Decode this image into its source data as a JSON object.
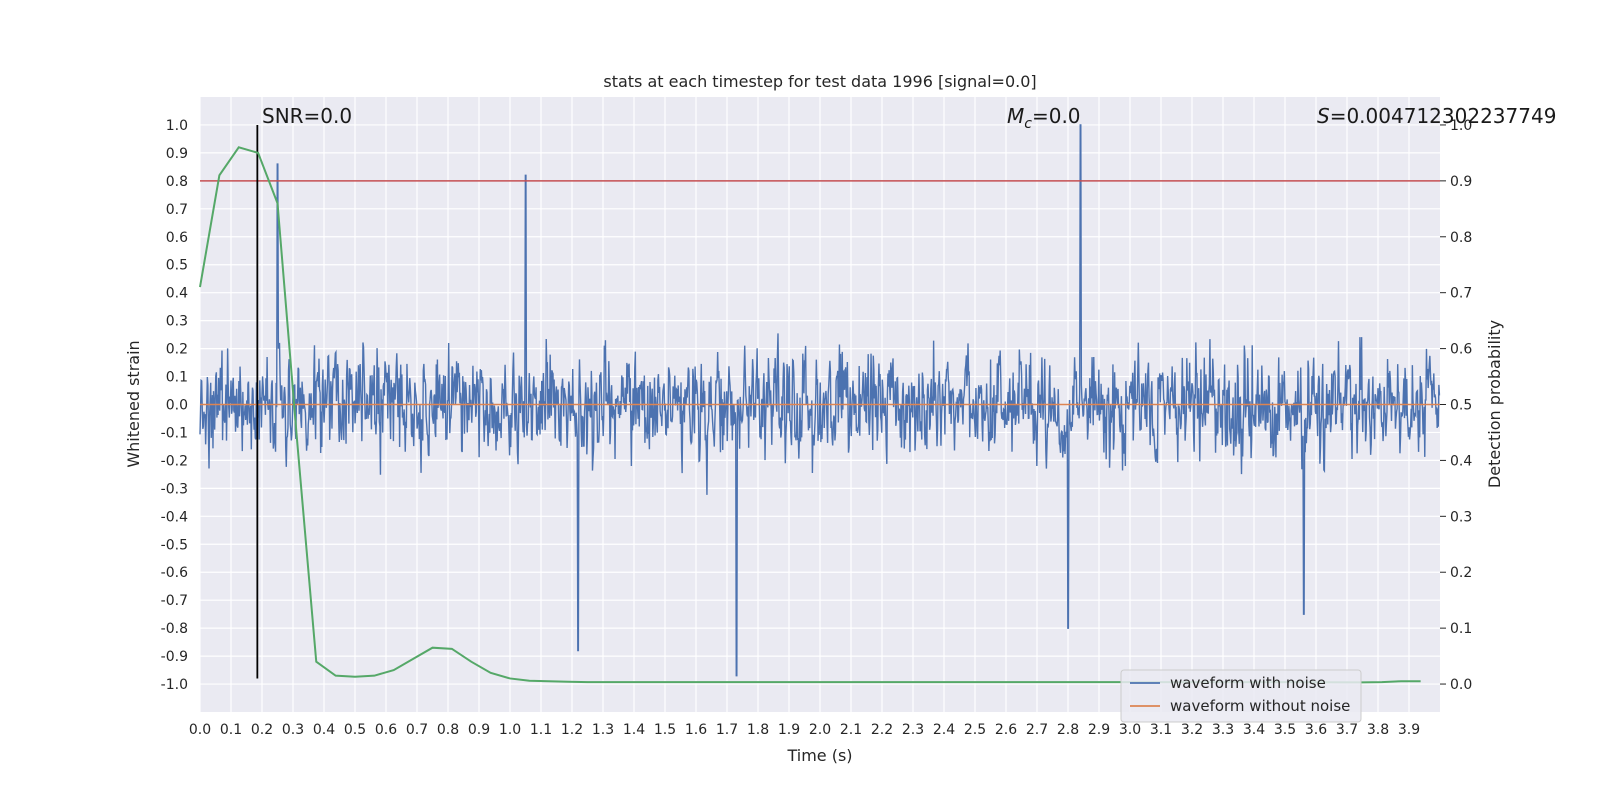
{
  "chart_data": {
    "type": "line",
    "title": "stats at each timestep for test data 1996 [signal=0.0]",
    "xlabel": "Time (s)",
    "ylabel": "Whitened strain",
    "ylabel_right": "Detection probability",
    "xlim": [
      0.0,
      4.0
    ],
    "ylim": [
      -1.1,
      1.1
    ],
    "ylim_right": [
      -0.05,
      1.05
    ],
    "x_ticks": [
      "0.0",
      "0.1",
      "0.2",
      "0.3",
      "0.4",
      "0.5",
      "0.6",
      "0.7",
      "0.8",
      "0.9",
      "1.0",
      "1.1",
      "1.2",
      "1.3",
      "1.4",
      "1.5",
      "1.6",
      "1.7",
      "1.8",
      "1.9",
      "2.0",
      "2.1",
      "2.2",
      "2.3",
      "2.4",
      "2.5",
      "2.6",
      "2.7",
      "2.8",
      "2.9",
      "3.0",
      "3.1",
      "3.2",
      "3.3",
      "3.4",
      "3.5",
      "3.6",
      "3.7",
      "3.8",
      "3.9"
    ],
    "y_ticks": [
      "1.0",
      "0.9",
      "0.8",
      "0.7",
      "0.6",
      "0.5",
      "0.4",
      "0.3",
      "0.2",
      "0.1",
      "0.0",
      "-0.1",
      "-0.2",
      "-0.3",
      "-0.4",
      "-0.5",
      "-0.6",
      "-0.7",
      "-0.8",
      "-0.9",
      "-1.0"
    ],
    "y_ticks_right": [
      "1.0",
      "0.9",
      "0.8",
      "0.7",
      "0.6",
      "0.5",
      "0.4",
      "0.3",
      "0.2",
      "0.1",
      "0.0"
    ],
    "grid": true,
    "legend_position": "bottom-right",
    "annotations": {
      "snr": "SNR=0.0",
      "mc_symbol": "M",
      "mc_sub": "c",
      "mc_value": "=0.0",
      "s_symbol": "S",
      "s_value": "=0.004712302237749"
    },
    "threshold_right": 0.9,
    "marker_time": 0.185,
    "marker_ylim": [
      -0.98,
      1.0
    ],
    "series": [
      {
        "name": "waveform with noise",
        "color": "#4c72b0",
        "envelope_peaks": [
          {
            "x": 0.25,
            "y": 0.86
          },
          {
            "x": 1.05,
            "y": 0.82
          },
          {
            "x": 2.84,
            "y": 1.0
          },
          {
            "x": 1.73,
            "y": -0.97
          },
          {
            "x": 1.22,
            "y": -0.88
          },
          {
            "x": 2.8,
            "y": -0.8
          },
          {
            "x": 3.56,
            "y": -0.75
          }
        ]
      },
      {
        "name": "waveform without noise",
        "color": "#dd8452",
        "value": 0.0
      },
      {
        "name": "detection probability",
        "color": "#55a868",
        "axis": "right",
        "x": [
          0.0,
          0.0625,
          0.125,
          0.1875,
          0.25,
          0.3125,
          0.375,
          0.4375,
          0.5,
          0.5625,
          0.625,
          0.6875,
          0.75,
          0.8125,
          0.875,
          0.9375,
          1.0,
          1.0625,
          1.125,
          1.1875,
          1.25,
          1.5,
          2.0,
          2.5,
          3.0,
          3.5,
          3.75,
          3.8125,
          3.875,
          3.9375
        ],
        "values": [
          0.71,
          0.91,
          0.96,
          0.95,
          0.86,
          0.44,
          0.04,
          0.015,
          0.013,
          0.015,
          0.025,
          0.045,
          0.065,
          0.063,
          0.04,
          0.02,
          0.01,
          0.006,
          0.005,
          0.004,
          0.0035,
          0.0035,
          0.0035,
          0.0035,
          0.0035,
          0.0035,
          0.003,
          0.0035,
          0.005,
          0.005
        ]
      }
    ],
    "legend": [
      "waveform with noise",
      "waveform without noise"
    ]
  }
}
